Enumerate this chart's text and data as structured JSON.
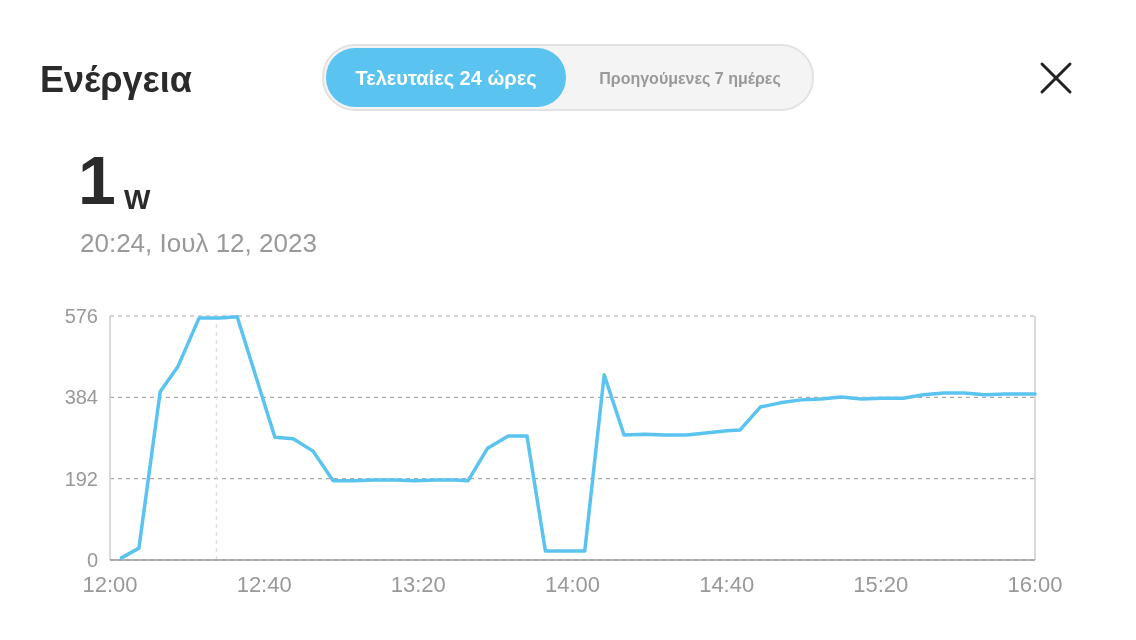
{
  "chart_data": {
    "type": "line",
    "title": "Ενέργεια",
    "subtitle": "20:24, Ιουλ 12, 2023",
    "annotations": [
      "Τελευταίες 24 ώρες",
      "Προηγούμενες 7 ημέρες",
      "1",
      "W"
    ],
    "x": [
      12.05,
      12.125,
      12.217,
      12.293,
      12.385,
      12.475,
      12.55,
      12.713,
      12.792,
      12.878,
      12.965,
      13.055,
      13.142,
      13.233,
      13.317,
      13.41,
      13.497,
      13.548,
      13.633,
      13.722,
      13.803,
      13.883,
      14.053,
      14.137,
      14.223,
      14.313,
      14.4,
      14.492,
      14.577,
      14.667,
      14.725,
      14.812,
      14.898,
      14.988,
      15.075,
      15.162,
      15.25,
      15.338,
      15.43,
      15.517,
      15.607,
      15.693,
      15.783,
      15.87,
      16
    ],
    "series": [
      {
        "color": "#5ac3f0",
        "values": [
          5,
          28,
          397,
          456,
          571,
          571,
          574,
          290,
          286,
          257,
          187,
          187,
          189,
          189,
          187,
          189,
          189,
          187,
          264,
          293,
          293,
          21,
          21,
          437,
          295,
          297,
          295,
          295,
          300,
          305,
          307,
          361,
          371,
          378,
          380,
          385,
          380,
          382,
          382,
          390,
          394,
          394,
          390,
          392,
          392
        ]
      }
    ],
    "xlim": [
      12,
      16
    ],
    "xticks": [
      {
        "value": 12,
        "label": "12:00"
      },
      {
        "value": 12.6667,
        "label": "12:40"
      },
      {
        "value": 13.3333,
        "label": "13:20"
      },
      {
        "value": 14,
        "label": "14:00"
      },
      {
        "value": 14.6667,
        "label": "14:40"
      },
      {
        "value": 15.3333,
        "label": "15:20"
      },
      {
        "value": 16,
        "label": "16:00"
      }
    ],
    "ylim": [
      0,
      576
    ],
    "yticks": [
      0,
      192,
      384,
      576
    ],
    "grid": "y",
    "marker": "none",
    "line_style": "solid",
    "ref_lines": [
      {
        "axis": "x",
        "value": 12.46,
        "label": null,
        "color": "#dddddd",
        "line_style": "dashed"
      }
    ]
  }
}
